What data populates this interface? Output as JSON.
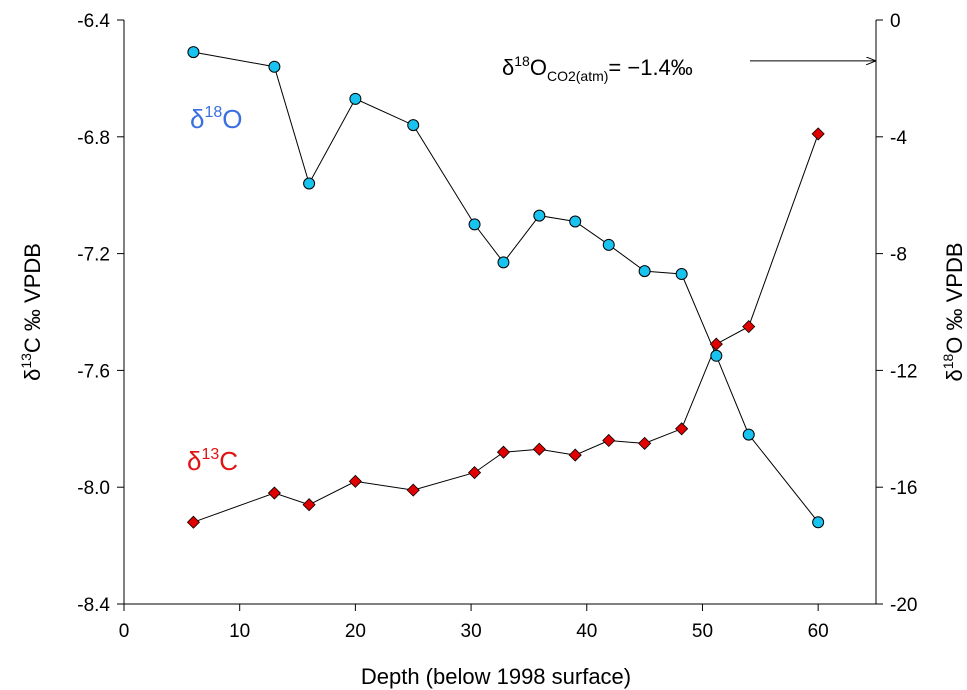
{
  "chart_data": {
    "type": "scatter",
    "xlabel": "Depth (below 1998 surface)",
    "ylabel_left": {
      "prefix": "δ",
      "sup": "13",
      "rest": "C ‰ VPDB"
    },
    "ylabel_right": {
      "prefix": "δ",
      "sup": "18",
      "rest": "O ‰ VPDB"
    },
    "xlim": [
      0,
      65
    ],
    "ylim_left": [
      -8.4,
      -6.4
    ],
    "ylim_right": [
      -20,
      0
    ],
    "x_ticks": [
      0,
      10,
      20,
      30,
      40,
      50,
      60
    ],
    "y_left_ticks": [
      -8.4,
      -8.0,
      -7.6,
      -7.2,
      -6.8,
      -6.4
    ],
    "y_left_tick_labels": [
      "-8.4",
      "-8.0",
      "-7.6",
      "-7.2",
      "-6.8",
      "-6.4"
    ],
    "y_right_ticks": [
      -20,
      -16,
      -12,
      -8,
      -4,
      0
    ],
    "y_right_tick_labels": [
      "-20",
      "-16",
      "-12",
      "-8",
      "-4",
      "0"
    ],
    "series": [
      {
        "axis": "right",
        "marker": "circle",
        "color": "#19c3f0",
        "label": {
          "prefix": "δ",
          "sup": "18",
          "rest": "O"
        },
        "x": [
          6,
          13,
          16,
          20,
          25,
          30.3,
          32.8,
          35.9,
          39,
          41.9,
          45,
          48.2,
          51.2,
          54,
          60
        ],
        "y": [
          -1.1,
          -1.6,
          -5.6,
          -2.7,
          -3.6,
          -7.0,
          -8.3,
          -6.7,
          -6.9,
          -7.7,
          -8.6,
          -8.7,
          -11.5,
          -14.2,
          -17.2
        ]
      },
      {
        "axis": "left",
        "marker": "diamond",
        "color": "#e00000",
        "label": {
          "prefix": "δ",
          "sup": "13",
          "rest": "C"
        },
        "x": [
          6,
          13,
          16,
          20,
          25,
          30.3,
          32.8,
          35.9,
          39,
          41.9,
          45,
          48.2,
          51.2,
          54,
          60
        ],
        "y": [
          -8.12,
          -8.02,
          -8.06,
          -7.98,
          -8.01,
          -7.95,
          -7.88,
          -7.87,
          -7.89,
          -7.84,
          -7.85,
          -7.8,
          -7.51,
          -7.45,
          -6.79
        ]
      }
    ],
    "annotation": {
      "prefix": "δ",
      "sup": "18",
      "base": "O",
      "sub": "CO2(atm)",
      "rest": "= −1.4‰",
      "arrow_to_right_axis_value": -1.4
    },
    "grid": false
  }
}
